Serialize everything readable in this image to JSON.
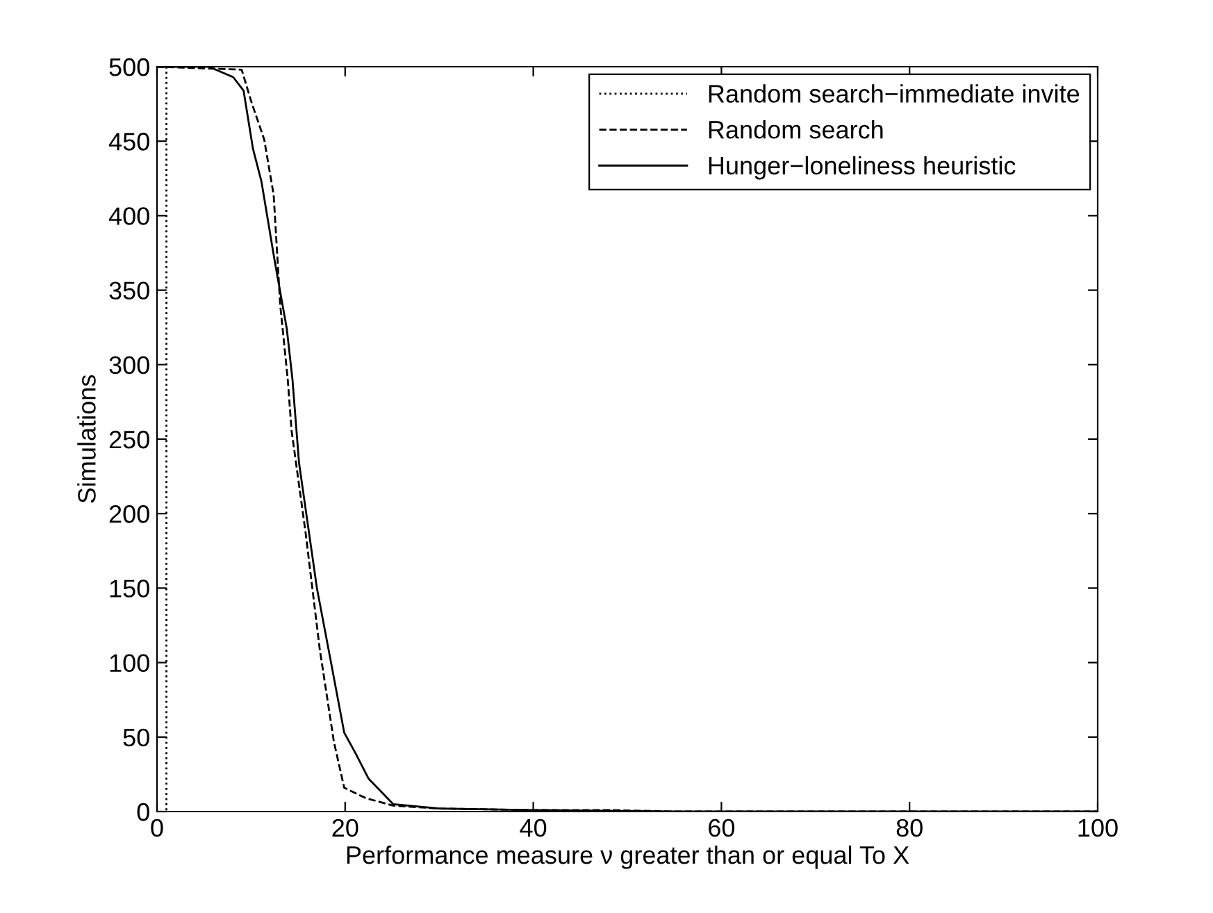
{
  "chart_data": {
    "type": "line",
    "xlabel": "Performance measure ν greater than or equal To X",
    "ylabel": "Simulations",
    "xlim": [
      0,
      100
    ],
    "ylim": [
      0,
      500
    ],
    "xticks": [
      0,
      20,
      40,
      60,
      80,
      100
    ],
    "yticks": [
      0,
      50,
      100,
      150,
      200,
      250,
      300,
      350,
      400,
      450,
      500
    ],
    "grid": false,
    "legend": "top right",
    "marker": "none",
    "series": [
      {
        "name": "Random search−immediate invite",
        "color": "#000000",
        "line_style": "dotted",
        "x": [
          1,
          1
        ],
        "values": [
          500,
          0
        ]
      },
      {
        "name": "Random search",
        "color": "#000000",
        "line_style": "dashed",
        "x": [
          0,
          9,
          10,
          11.4,
          12.4,
          13.1,
          13.9,
          14.3,
          15.8,
          17.3,
          18.8,
          19.9,
          22.2,
          25.1,
          30,
          40,
          48,
          55,
          100
        ],
        "values": [
          500,
          498,
          477,
          451,
          414,
          340,
          290,
          256,
          187,
          109,
          47,
          16,
          9,
          4,
          2,
          1,
          1,
          0,
          0
        ]
      },
      {
        "name": "Hunger−loneliness heuristic",
        "color": "#000000",
        "line_style": "solid",
        "x": [
          0,
          5.5,
          8.1,
          9.2,
          10.2,
          11.1,
          12.5,
          13.8,
          14.4,
          15.1,
          17,
          18.5,
          19.9,
          21.2,
          22.5,
          25.1,
          30,
          40,
          55,
          100
        ],
        "values": [
          500,
          500,
          493,
          484,
          445,
          423,
          370,
          324,
          290,
          234,
          150,
          100,
          53,
          38,
          22,
          5,
          2,
          1,
          0,
          0
        ]
      }
    ]
  }
}
